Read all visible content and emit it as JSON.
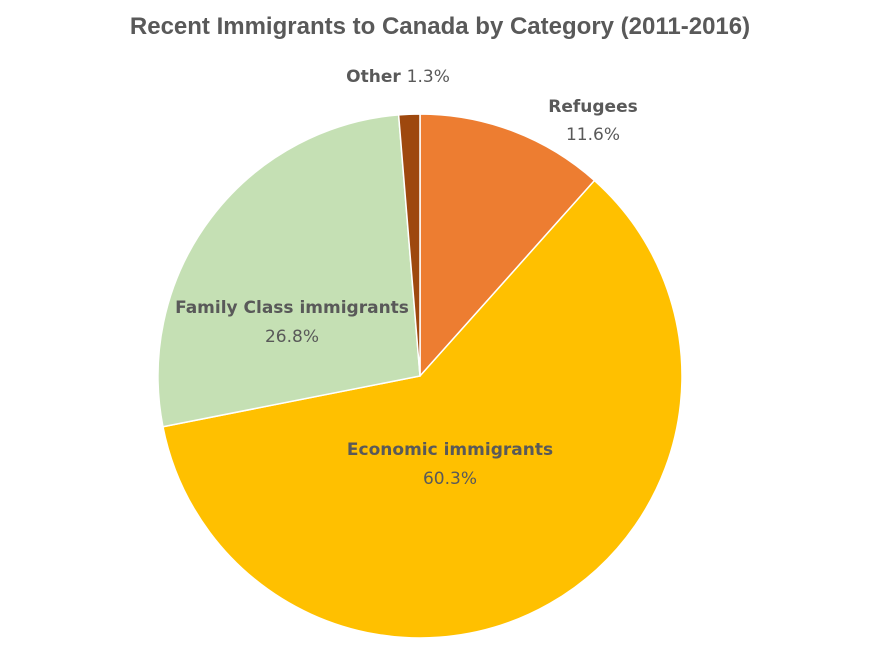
{
  "chart_data": {
    "type": "pie",
    "title": "Recent Immigrants to Canada by Category (2011-2016)",
    "start_angle": "12 o'clock",
    "direction": "clockwise",
    "slices": [
      {
        "label": "Refugees",
        "value": 11.6,
        "value_label": "11.6%",
        "color": "#ED7D31"
      },
      {
        "label": "Economic immigrants",
        "value": 60.3,
        "value_label": "60.3%",
        "color": "#FFC000"
      },
      {
        "label": "Family Class immigrants",
        "value": 26.8,
        "value_label": "26.8%",
        "color": "#C5E0B4"
      },
      {
        "label": "Other",
        "value": 1.3,
        "value_label": "1.3%",
        "color": "#9E480E"
      }
    ],
    "legend": "none"
  }
}
